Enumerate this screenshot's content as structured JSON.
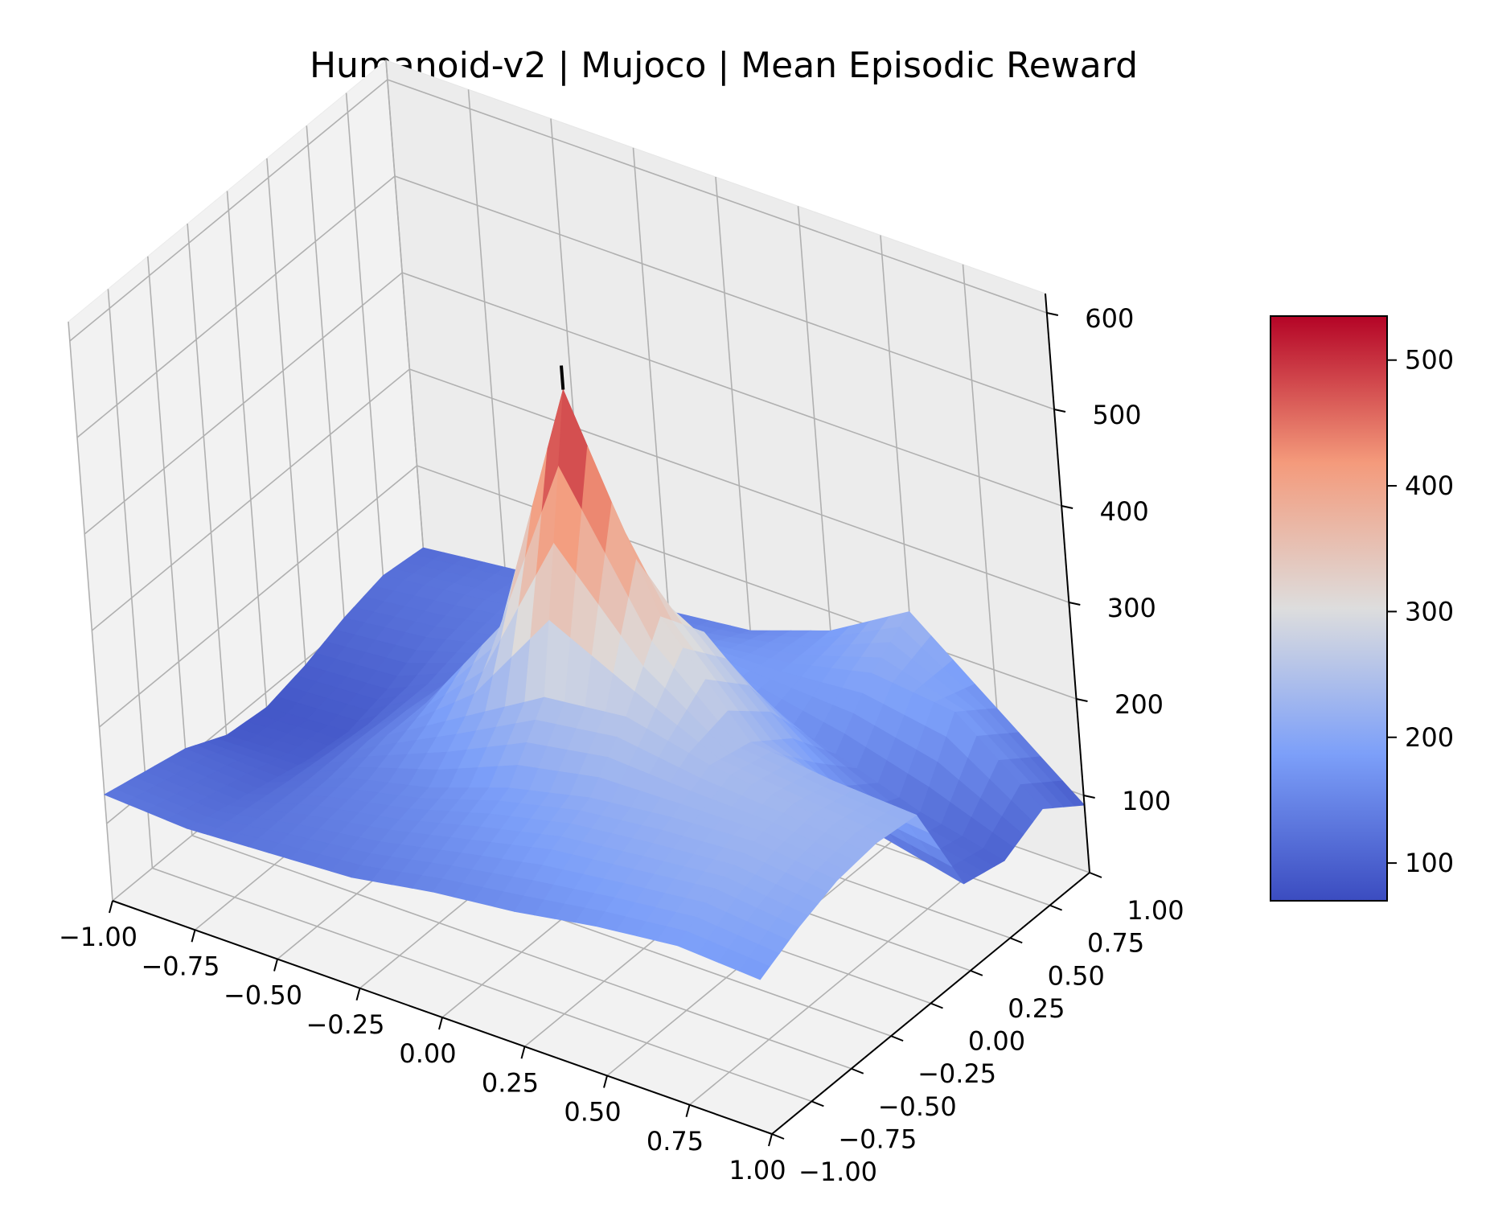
{
  "chart_data": {
    "type": "surface3d",
    "title": "Humanoid-v2 | Mujoco | Mean Episodic Reward",
    "x_ticks": [
      "−1.00",
      "−0.75",
      "−0.50",
      "−0.25",
      "0.00",
      "0.25",
      "0.50",
      "0.75",
      "1.00"
    ],
    "y_ticks": [
      "−1.00",
      "−0.75",
      "−0.50",
      "−0.25",
      "0.00",
      "0.25",
      "0.50",
      "0.75",
      "1.00"
    ],
    "z_ticks": [
      "100",
      "200",
      "300",
      "400",
      "500",
      "600"
    ],
    "xlim": [
      -1,
      1
    ],
    "ylim": [
      -1,
      1
    ],
    "zlim": [
      20,
      620
    ],
    "colormap": "coolwarm",
    "colorbar": {
      "ticks": [
        "100",
        "200",
        "300",
        "400",
        "500"
      ],
      "range": [
        70,
        535
      ]
    },
    "surface": {
      "x": [
        -1.0,
        -0.75,
        -0.5,
        -0.25,
        0.0,
        0.25,
        0.5,
        0.75,
        1.0
      ],
      "y": [
        -1.0,
        -0.75,
        -0.5,
        -0.25,
        0.0,
        0.25,
        0.5,
        0.75,
        1.0
      ],
      "z": [
        [
          130,
          125,
          130,
          135,
          150,
          160,
          175,
          185,
          180
        ],
        [
          120,
          115,
          135,
          150,
          170,
          190,
          200,
          210,
          200
        ],
        [
          110,
          105,
          140,
          160,
          190,
          210,
          220,
          225,
          215
        ],
        [
          90,
          95,
          150,
          200,
          250,
          260,
          240,
          230,
          220
        ],
        [
          85,
          90,
          150,
          260,
          535,
          330,
          230,
          220,
          215
        ],
        [
          95,
          100,
          140,
          210,
          280,
          280,
          200,
          130,
          110
        ],
        [
          110,
          120,
          140,
          170,
          200,
          180,
          150,
          120,
          100
        ],
        [
          120,
          130,
          140,
          150,
          170,
          180,
          200,
          190,
          120
        ],
        [
          115,
          125,
          135,
          140,
          150,
          180,
          230,
          160,
          90
        ]
      ]
    },
    "peak_marker": {
      "x": 0.0,
      "y": 0.0,
      "z": 560
    }
  }
}
